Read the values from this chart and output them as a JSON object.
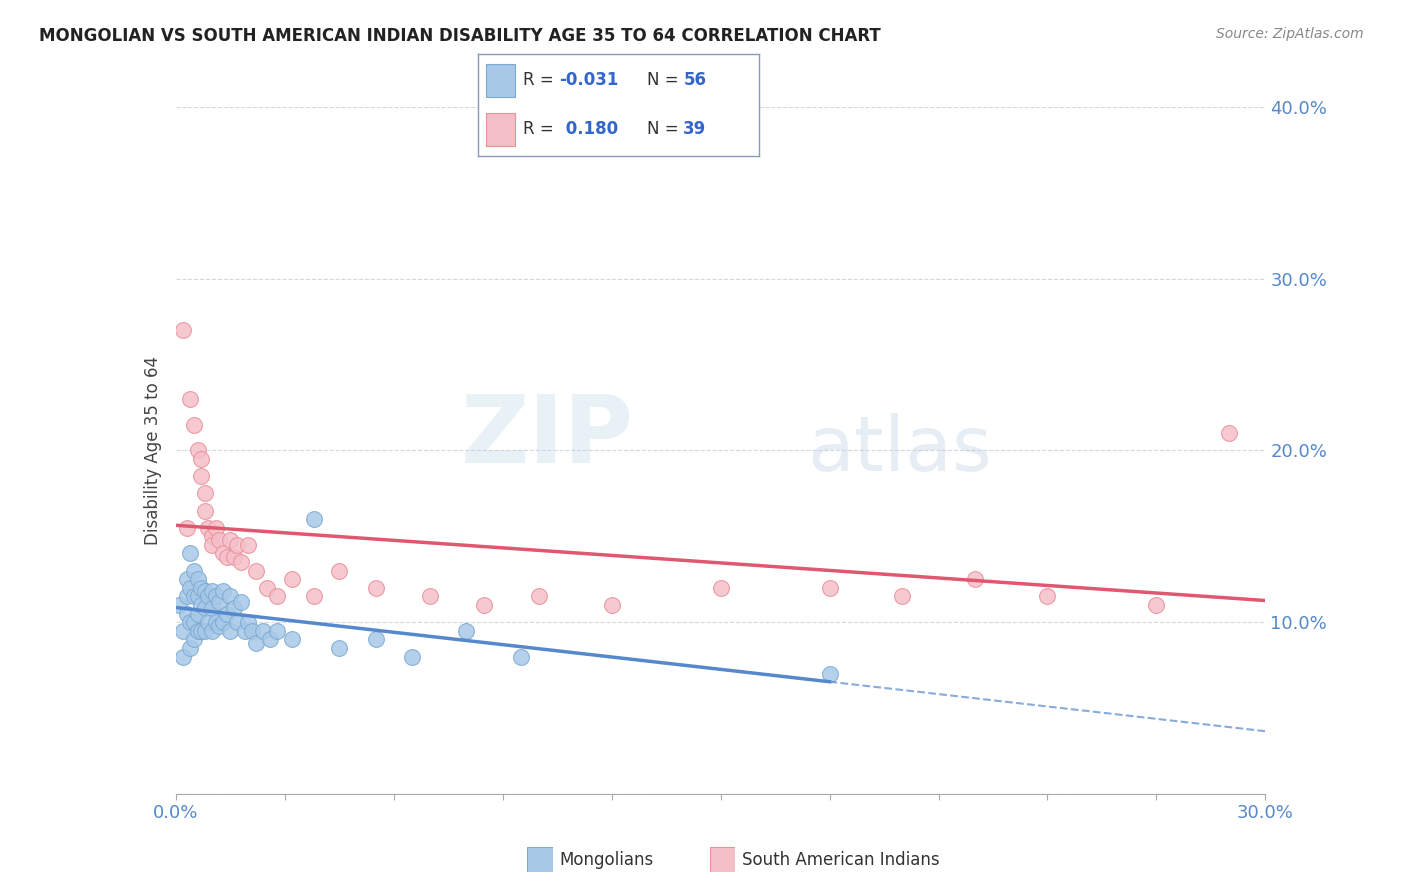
{
  "title": "MONGOLIAN VS SOUTH AMERICAN INDIAN DISABILITY AGE 35 TO 64 CORRELATION CHART",
  "source": "Source: ZipAtlas.com",
  "ylabel": "Disability Age 35 to 64",
  "xlim": [
    0.0,
    0.3
  ],
  "ylim": [
    0.0,
    0.4
  ],
  "xticks": [
    0.0,
    0.03,
    0.06,
    0.09,
    0.12,
    0.15,
    0.18,
    0.21,
    0.24,
    0.27,
    0.3
  ],
  "xtick_labels_show": [
    "0.0%",
    "",
    "",
    "",
    "",
    "",
    "",
    "",
    "",
    "",
    "30.0%"
  ],
  "yticks": [
    0.0,
    0.1,
    0.2,
    0.3,
    0.4
  ],
  "ytick_labels": [
    "",
    "10.0%",
    "20.0%",
    "30.0%",
    "40.0%"
  ],
  "mongolian_color": "#a8c8e8",
  "mongolian_edge": "#7aaad0",
  "sa_indian_color": "#f5bfc8",
  "sa_indian_edge": "#e8909a",
  "trend_mongolian_color": "#5588cc",
  "trend_sa_color": "#e05870",
  "legend_R_mongolian": "-0.031",
  "legend_N_mongolian": "56",
  "legend_R_sa": "0.180",
  "legend_N_sa": "39",
  "mongolian_x": [
    0.001,
    0.002,
    0.002,
    0.003,
    0.003,
    0.003,
    0.004,
    0.004,
    0.004,
    0.004,
    0.005,
    0.005,
    0.005,
    0.005,
    0.006,
    0.006,
    0.006,
    0.006,
    0.007,
    0.007,
    0.007,
    0.008,
    0.008,
    0.008,
    0.009,
    0.009,
    0.01,
    0.01,
    0.01,
    0.011,
    0.011,
    0.012,
    0.012,
    0.013,
    0.013,
    0.014,
    0.015,
    0.015,
    0.016,
    0.017,
    0.018,
    0.019,
    0.02,
    0.021,
    0.022,
    0.024,
    0.026,
    0.028,
    0.032,
    0.038,
    0.045,
    0.055,
    0.065,
    0.08,
    0.095,
    0.18
  ],
  "mongolian_y": [
    0.11,
    0.095,
    0.08,
    0.125,
    0.115,
    0.105,
    0.14,
    0.12,
    0.1,
    0.085,
    0.13,
    0.115,
    0.1,
    0.09,
    0.125,
    0.115,
    0.105,
    0.095,
    0.12,
    0.11,
    0.095,
    0.118,
    0.108,
    0.095,
    0.115,
    0.1,
    0.118,
    0.108,
    0.095,
    0.115,
    0.1,
    0.112,
    0.098,
    0.118,
    0.1,
    0.105,
    0.115,
    0.095,
    0.108,
    0.1,
    0.112,
    0.095,
    0.1,
    0.095,
    0.088,
    0.095,
    0.09,
    0.095,
    0.09,
    0.16,
    0.085,
    0.09,
    0.08,
    0.095,
    0.08,
    0.07
  ],
  "sa_indian_x": [
    0.002,
    0.003,
    0.004,
    0.005,
    0.006,
    0.007,
    0.007,
    0.008,
    0.008,
    0.009,
    0.01,
    0.01,
    0.011,
    0.012,
    0.013,
    0.014,
    0.015,
    0.016,
    0.017,
    0.018,
    0.02,
    0.022,
    0.025,
    0.028,
    0.032,
    0.038,
    0.045,
    0.055,
    0.07,
    0.085,
    0.1,
    0.12,
    0.15,
    0.18,
    0.2,
    0.22,
    0.24,
    0.27,
    0.29
  ],
  "sa_indian_y": [
    0.27,
    0.155,
    0.23,
    0.215,
    0.2,
    0.195,
    0.185,
    0.175,
    0.165,
    0.155,
    0.15,
    0.145,
    0.155,
    0.148,
    0.14,
    0.138,
    0.148,
    0.138,
    0.145,
    0.135,
    0.145,
    0.13,
    0.12,
    0.115,
    0.125,
    0.115,
    0.13,
    0.12,
    0.115,
    0.11,
    0.115,
    0.11,
    0.12,
    0.12,
    0.115,
    0.125,
    0.115,
    0.11,
    0.21
  ],
  "watermark_zip": "ZIP",
  "watermark_atlas": "atlas",
  "background_color": "#ffffff",
  "plot_bg_color": "#ffffff",
  "grid_color": "#ccccdd",
  "legend_box_color": "#c8d8ee",
  "legend_edge_color": "#8899bb"
}
